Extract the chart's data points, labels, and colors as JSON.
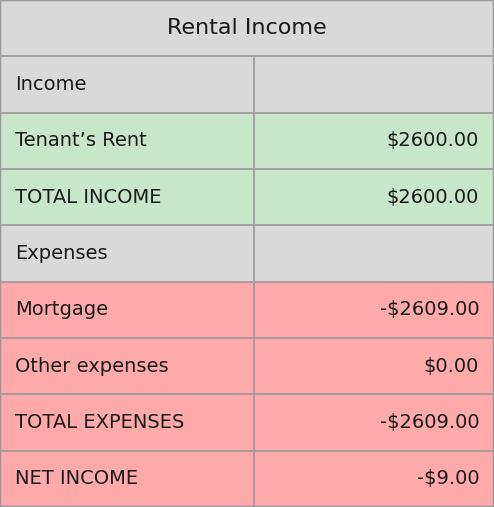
{
  "title": "Rental Income",
  "rows": [
    {
      "label": "Income",
      "value": "",
      "row_color": "#d9d9d9"
    },
    {
      "label": "Tenant’s Rent",
      "value": "$2600.00",
      "row_color": "#c8e6c8"
    },
    {
      "label": "TOTAL INCOME",
      "value": "$2600.00",
      "row_color": "#c8e6c8"
    },
    {
      "label": "Expenses",
      "value": "",
      "row_color": "#d9d9d9"
    },
    {
      "label": "Mortgage",
      "value": "-$2609.00",
      "row_color": "#ffaaaa"
    },
    {
      "label": "Other expenses",
      "value": "$0.00",
      "row_color": "#ffaaaa"
    },
    {
      "label": "TOTAL EXPENSES",
      "value": "-$2609.00",
      "row_color": "#ffaaaa"
    },
    {
      "label": "NET INCOME",
      "value": "-$9.00",
      "row_color": "#ffaaaa"
    }
  ],
  "header_color": "#d9d9d9",
  "col_split": 0.515,
  "font_size": 14,
  "title_font_size": 16,
  "border_color": "#999999",
  "text_color": "#1a1a1a",
  "figsize": [
    4.94,
    5.07
  ],
  "dpi": 100
}
